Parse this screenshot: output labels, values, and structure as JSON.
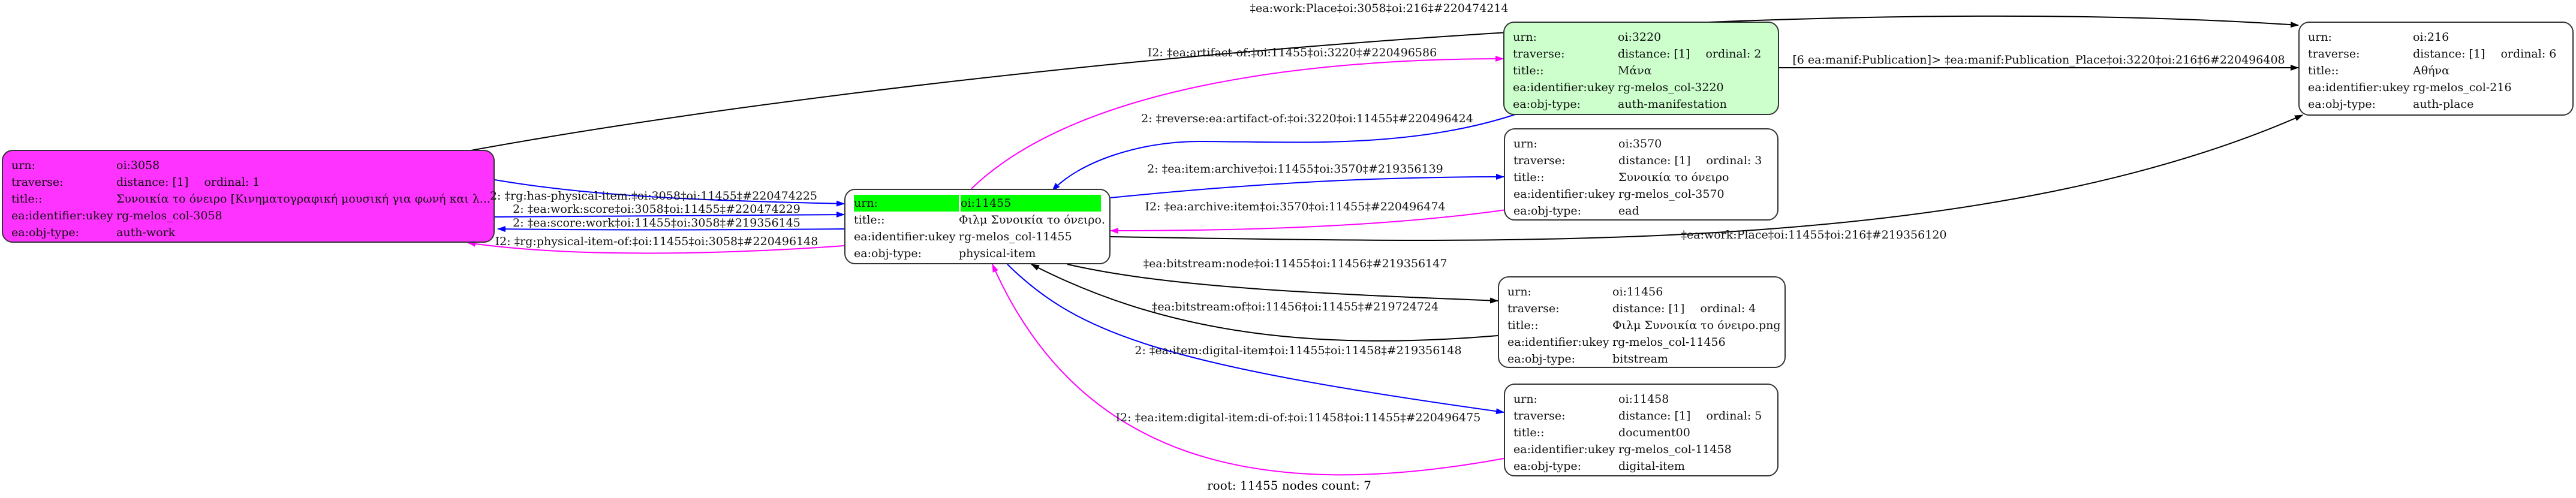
{
  "colors": {
    "black": "#000000",
    "blue": "#0000ff",
    "magenta": "#ff00ff",
    "work_fill": "#ff33ff",
    "manif_fill": "#ccffcc",
    "root_highlight": "#00ff00"
  },
  "nodes": [
    {
      "id": "n3058",
      "fill": "#ff33ff",
      "rows": [
        {
          "k": "urn:",
          "v": "oi:3058"
        },
        {
          "k": "traverse:",
          "v": "distance: [1]",
          "ord": "ordinal: 1"
        },
        {
          "k": "title::",
          "v": "Συνοικία το όνειρο [Κινηματογραφική μουσική για φωνή και λ..."
        },
        {
          "k": "ea:identifier:ukey",
          "v": "rg-melos_col-3058"
        },
        {
          "k": "ea:obj-type:",
          "v": "auth-work"
        }
      ]
    },
    {
      "id": "n11455",
      "fill": "#ffffff",
      "root": true,
      "rows": [
        {
          "k": "urn:",
          "v": "oi:11455"
        },
        {
          "k": "title::",
          "v": "Φιλμ Συνοικία το όνειρο."
        },
        {
          "k": "ea:identifier:ukey",
          "v": "rg-melos_col-11455"
        },
        {
          "k": "ea:obj-type:",
          "v": "physical-item"
        }
      ]
    },
    {
      "id": "n3220",
      "fill": "#ccffcc",
      "rows": [
        {
          "k": "urn:",
          "v": "oi:3220"
        },
        {
          "k": "traverse:",
          "v": "distance: [1]",
          "ord": "ordinal: 2"
        },
        {
          "k": "title::",
          "v": "Μάνα"
        },
        {
          "k": "ea:identifier:ukey",
          "v": "rg-melos_col-3220"
        },
        {
          "k": "ea:obj-type:",
          "v": "auth-manifestation"
        }
      ]
    },
    {
      "id": "n3570",
      "fill": "#ffffff",
      "rows": [
        {
          "k": "urn:",
          "v": "oi:3570"
        },
        {
          "k": "traverse:",
          "v": "distance: [1]",
          "ord": "ordinal: 3"
        },
        {
          "k": "title::",
          "v": "Συνοικία το όνειρο"
        },
        {
          "k": "ea:identifier:ukey",
          "v": "rg-melos_col-3570"
        },
        {
          "k": "ea:obj-type:",
          "v": "ead"
        }
      ]
    },
    {
      "id": "n11456",
      "fill": "#ffffff",
      "rows": [
        {
          "k": "urn:",
          "v": "oi:11456"
        },
        {
          "k": "traverse:",
          "v": "distance: [1]",
          "ord": "ordinal: 4"
        },
        {
          "k": "title::",
          "v": "Φιλμ Συνοικία το όνειρο.png"
        },
        {
          "k": "ea:identifier:ukey",
          "v": "rg-melos_col-11456"
        },
        {
          "k": "ea:obj-type:",
          "v": "bitstream"
        }
      ]
    },
    {
      "id": "n11458",
      "fill": "#ffffff",
      "rows": [
        {
          "k": "urn:",
          "v": "oi:11458"
        },
        {
          "k": "traverse:",
          "v": "distance: [1]",
          "ord": "ordinal: 5"
        },
        {
          "k": "title::",
          "v": "document00"
        },
        {
          "k": "ea:identifier:ukey",
          "v": "rg-melos_col-11458"
        },
        {
          "k": "ea:obj-type:",
          "v": "digital-item"
        }
      ]
    },
    {
      "id": "n216",
      "fill": "#ffffff",
      "rows": [
        {
          "k": "urn:",
          "v": "oi:216"
        },
        {
          "k": "traverse:",
          "v": "distance: [1]",
          "ord": "ordinal: 6"
        },
        {
          "k": "title::",
          "v": "Αθήνα"
        },
        {
          "k": "ea:identifier:ukey",
          "v": "rg-melos_col-216"
        },
        {
          "k": "ea:obj-type:",
          "v": "auth-place"
        }
      ]
    }
  ],
  "edges": [
    {
      "from": "n3058",
      "to": "n216",
      "color": "#000000",
      "label": "‡ea:work:Place‡oi:3058‡oi:216‡#220474214"
    },
    {
      "from": "n3058",
      "to": "n11455",
      "color": "#0000ff",
      "label": "2: ‡rg:has-physical-item:‡oi:3058‡oi:11455‡#220474225"
    },
    {
      "from": "n3058",
      "to": "n11455",
      "color": "#0000ff",
      "label": "2: ‡ea:work:score‡oi:3058‡oi:11455‡#220474229"
    },
    {
      "from": "n11455",
      "to": "n3058",
      "color": "#0000ff",
      "label": "2: ‡ea:score:work‡oi:11455‡oi:3058‡#219356145"
    },
    {
      "from": "n11455",
      "to": "n3058",
      "color": "#ff00ff",
      "label": "I2: ‡rg:physical-item-of:‡oi:11455‡oi:3058‡#220496148"
    },
    {
      "from": "n11455",
      "to": "n3220",
      "color": "#ff00ff",
      "label": "I2: ‡ea:artifact-of:‡oi:11455‡oi:3220‡#220496586"
    },
    {
      "from": "n3220",
      "to": "n11455",
      "color": "#0000ff",
      "label": "2: ‡reverse:ea:artifact-of:‡oi:3220‡oi:11455‡#220496424"
    },
    {
      "from": "n11455",
      "to": "n3570",
      "color": "#0000ff",
      "label": "2: ‡ea:item:archive‡oi:11455‡oi:3570‡#219356139"
    },
    {
      "from": "n3570",
      "to": "n11455",
      "color": "#ff00ff",
      "label": "I2: ‡ea:archive:item‡oi:3570‡oi:11455‡#220496474"
    },
    {
      "from": "n11455",
      "to": "n216",
      "color": "#000000",
      "label": "‡ea:work:Place‡oi:11455‡oi:216‡#219356120"
    },
    {
      "from": "n11455",
      "to": "n11456",
      "color": "#000000",
      "label": "‡ea:bitstream:node‡oi:11455‡oi:11456‡#219356147"
    },
    {
      "from": "n11456",
      "to": "n11455",
      "color": "#000000",
      "label": "‡ea:bitstream:of‡oi:11456‡oi:11455‡#219724724"
    },
    {
      "from": "n11455",
      "to": "n11458",
      "color": "#0000ff",
      "label": "2: ‡ea:item:digital-item‡oi:11455‡oi:11458‡#219356148"
    },
    {
      "from": "n11458",
      "to": "n11455",
      "color": "#ff00ff",
      "label": "I2: ‡ea:item:digital-item:di-of:‡oi:11458‡oi:11455‡#220496475"
    },
    {
      "from": "n3220",
      "to": "n216",
      "color": "#000000",
      "label": "[6 ea:manif:Publication]> ‡ea:manif:Publication_Place‡oi:3220‡oi:216‡6#220496408"
    }
  ],
  "footer": "root: 11455 nodes count: 7"
}
